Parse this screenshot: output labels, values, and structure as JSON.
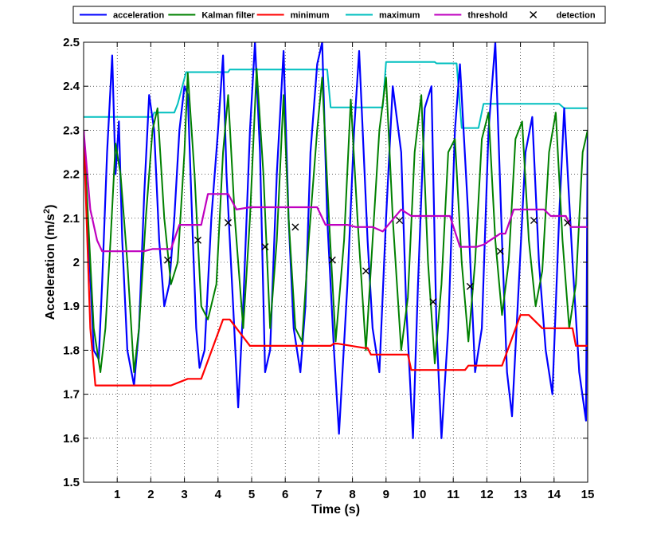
{
  "chart_data": {
    "type": "line",
    "xlabel": "Time (s)",
    "ylabel_main": "Acceleration (m/s",
    "ylabel_sup": "2",
    "ylabel_close": ")",
    "xlim": [
      0,
      15
    ],
    "ylim": [
      1.5,
      2.5
    ],
    "x_ticks": [
      1,
      2,
      3,
      4,
      5,
      6,
      7,
      8,
      9,
      10,
      11,
      12,
      13,
      14,
      15
    ],
    "y_ticks": [
      1.5,
      1.6,
      1.7,
      1.8,
      1.9,
      2.0,
      2.1,
      2.2,
      2.3,
      2.4,
      2.5
    ],
    "x_tick_labels": [
      "1",
      "2",
      "3",
      "4",
      "5",
      "6",
      "7",
      "8",
      "9",
      "10",
      "11",
      "12",
      "13",
      "14",
      "15"
    ],
    "y_tick_labels": [
      "1.5",
      "1.6",
      "1.7",
      "1.8",
      "1.9",
      "2",
      "2.1",
      "2.2",
      "2.3",
      "2.4",
      "2.5"
    ],
    "grid": true,
    "legend_position": "top",
    "series": [
      {
        "name": "acceleration",
        "color": "#0000ff",
        "width": 2.2,
        "x": [
          0,
          0.15,
          0.3,
          0.45,
          0.55,
          0.7,
          0.85,
          0.95,
          1.05,
          1.15,
          1.3,
          1.5,
          1.65,
          1.8,
          1.95,
          2.1,
          2.25,
          2.4,
          2.55,
          2.7,
          2.85,
          3.0,
          3.1,
          3.25,
          3.35,
          3.45,
          3.6,
          3.8,
          4.0,
          4.15,
          4.25,
          4.45,
          4.6,
          4.75,
          4.95,
          5.1,
          5.25,
          5.4,
          5.55,
          5.75,
          5.95,
          6.1,
          6.25,
          6.45,
          6.6,
          6.75,
          6.95,
          7.1,
          7.25,
          7.45,
          7.6,
          7.85,
          8.05,
          8.2,
          8.45,
          8.6,
          8.8,
          9.0,
          9.2,
          9.45,
          9.6,
          9.8,
          9.95,
          10.15,
          10.35,
          10.5,
          10.65,
          10.85,
          11.05,
          11.2,
          11.45,
          11.65,
          11.85,
          12.05,
          12.25,
          12.45,
          12.6,
          12.75,
          12.95,
          13.15,
          13.35,
          13.55,
          13.75,
          13.95,
          14.15,
          14.3,
          14.55,
          14.75,
          14.95,
          15.0
        ],
        "y": [
          2.3,
          2.05,
          1.8,
          1.78,
          1.95,
          2.25,
          2.47,
          2.2,
          2.32,
          2.05,
          1.8,
          1.72,
          1.85,
          2.15,
          2.38,
          2.3,
          2.05,
          1.9,
          1.95,
          2.1,
          2.3,
          2.4,
          2.38,
          2.05,
          1.85,
          1.76,
          1.8,
          2.1,
          2.3,
          2.47,
          2.2,
          1.9,
          1.67,
          1.9,
          2.3,
          2.5,
          2.25,
          1.75,
          1.8,
          2.2,
          2.48,
          2.1,
          1.85,
          1.75,
          1.9,
          2.25,
          2.45,
          2.5,
          2.1,
          1.8,
          1.61,
          1.95,
          2.3,
          2.48,
          2.05,
          1.85,
          1.75,
          2.1,
          2.4,
          2.25,
          1.9,
          1.6,
          1.95,
          2.35,
          2.4,
          1.85,
          1.6,
          1.85,
          2.3,
          2.45,
          2.1,
          1.75,
          1.85,
          2.3,
          2.5,
          2.05,
          1.75,
          1.65,
          1.95,
          2.25,
          2.33,
          2.0,
          1.8,
          1.7,
          2.1,
          2.35,
          2.0,
          1.75,
          1.64,
          2.3
        ]
      },
      {
        "name": "Kalman filter",
        "color": "#008000",
        "width": 2,
        "x": [
          0,
          0.3,
          0.5,
          0.65,
          0.8,
          0.95,
          1.1,
          1.3,
          1.5,
          1.65,
          1.85,
          2.05,
          2.2,
          2.4,
          2.6,
          2.8,
          3.0,
          3.1,
          3.3,
          3.5,
          3.7,
          3.95,
          4.15,
          4.3,
          4.5,
          4.75,
          4.95,
          5.15,
          5.35,
          5.55,
          5.75,
          5.95,
          6.1,
          6.3,
          6.5,
          6.7,
          6.95,
          7.1,
          7.3,
          7.5,
          7.75,
          7.95,
          8.15,
          8.4,
          8.6,
          8.8,
          9.0,
          9.2,
          9.45,
          9.65,
          9.85,
          10.05,
          10.25,
          10.45,
          10.65,
          10.85,
          11.05,
          11.25,
          11.45,
          11.65,
          11.85,
          12.05,
          12.25,
          12.45,
          12.65,
          12.85,
          13.05,
          13.25,
          13.45,
          13.65,
          13.85,
          14.05,
          14.25,
          14.45,
          14.65,
          14.85,
          15.0
        ],
        "y": [
          2.3,
          1.85,
          1.75,
          1.85,
          2.05,
          2.27,
          2.2,
          2.0,
          1.75,
          1.85,
          2.1,
          2.3,
          2.35,
          2.1,
          1.95,
          2.0,
          2.25,
          2.43,
          2.2,
          1.9,
          1.87,
          1.95,
          2.25,
          2.38,
          2.1,
          1.85,
          2.1,
          2.44,
          2.2,
          1.85,
          2.05,
          2.38,
          2.1,
          1.85,
          1.82,
          2.05,
          2.3,
          2.42,
          2.1,
          1.82,
          2.05,
          2.37,
          2.1,
          1.8,
          2.05,
          2.3,
          2.42,
          2.1,
          1.8,
          1.92,
          2.25,
          2.38,
          2.0,
          1.77,
          1.95,
          2.25,
          2.28,
          2.0,
          1.82,
          2.0,
          2.28,
          2.34,
          2.05,
          1.88,
          2.0,
          2.28,
          2.32,
          2.05,
          1.9,
          1.98,
          2.25,
          2.34,
          2.05,
          1.85,
          1.95,
          2.25,
          2.3
        ]
      },
      {
        "name": "minimum",
        "color": "#ff0000",
        "width": 2.2,
        "x": [
          0,
          0.2,
          0.35,
          0.5,
          2.55,
          2.6,
          3.1,
          3.4,
          3.5,
          4.15,
          4.25,
          4.35,
          4.95,
          7.35,
          7.45,
          7.55,
          8.35,
          8.45,
          8.55,
          9.65,
          9.75,
          10.45,
          11.35,
          11.45,
          12.25,
          12.35,
          12.45,
          13.0,
          13.15,
          13.25,
          13.65,
          13.75,
          14.55,
          14.65,
          14.75,
          15.0
        ],
        "y": [
          2.3,
          1.85,
          1.72,
          1.72,
          1.72,
          1.72,
          1.735,
          1.735,
          1.735,
          1.87,
          1.87,
          1.87,
          1.81,
          1.81,
          1.815,
          1.815,
          1.805,
          1.805,
          1.79,
          1.79,
          1.755,
          1.755,
          1.755,
          1.765,
          1.765,
          1.765,
          1.765,
          1.88,
          1.88,
          1.88,
          1.85,
          1.85,
          1.85,
          1.81,
          1.81,
          1.81
        ]
      },
      {
        "name": "maximum",
        "color": "#00bfbf",
        "width": 2,
        "x": [
          0,
          2.05,
          2.1,
          2.7,
          3.05,
          3.1,
          4.25,
          4.95,
          5.0,
          7.25,
          7.35,
          8.9,
          8.95,
          11.1,
          11.15,
          11.25,
          11.7,
          12.1,
          14.15,
          14.45,
          15.0
        ],
        "y": [
          2.33,
          2.33,
          2.34,
          2.34,
          2.432,
          2.432,
          2.432,
          2.438,
          2.438,
          2.438,
          2.352,
          2.352,
          2.455,
          2.452,
          2.452,
          2.305,
          2.305,
          2.36,
          2.36,
          2.348,
          2.348
        ],
        "steps": [
          [
            0,
            2.33
          ],
          [
            2.05,
            2.33
          ],
          [
            2.1,
            2.34
          ],
          [
            2.7,
            2.34
          ],
          [
            2.8,
            2.36
          ],
          [
            3.05,
            2.432
          ],
          [
            4.3,
            2.432
          ],
          [
            4.35,
            2.438
          ],
          [
            7.25,
            2.438
          ],
          [
            7.35,
            2.352
          ],
          [
            8.9,
            2.352
          ],
          [
            9.0,
            2.455
          ],
          [
            10.45,
            2.455
          ],
          [
            10.5,
            2.452
          ],
          [
            11.1,
            2.452
          ],
          [
            11.25,
            2.305
          ],
          [
            11.75,
            2.305
          ],
          [
            11.9,
            2.36
          ],
          [
            14.15,
            2.36
          ],
          [
            14.3,
            2.35
          ],
          [
            15.0,
            2.35
          ]
        ]
      },
      {
        "name": "threshold",
        "color": "#bf00bf",
        "width": 2.2,
        "x": [
          0,
          0.2,
          0.4,
          0.55,
          1.8,
          2.05,
          2.6,
          2.85,
          3.5,
          3.7,
          4.3,
          4.55,
          4.95,
          6.95,
          7.2,
          7.85,
          8.1,
          8.6,
          8.9,
          9.45,
          9.75,
          10.9,
          11.2,
          11.7,
          11.9,
          12.4,
          12.55,
          12.8,
          12.95,
          13.7,
          13.9,
          14.35,
          14.5,
          15.0
        ],
        "y": [
          2.3,
          2.12,
          2.05,
          2.025,
          2.025,
          2.03,
          2.03,
          2.085,
          2.085,
          2.155,
          2.155,
          2.12,
          2.125,
          2.125,
          2.085,
          2.085,
          2.08,
          2.08,
          2.07,
          2.12,
          2.105,
          2.105,
          2.035,
          2.035,
          2.04,
          2.065,
          2.065,
          2.12,
          2.12,
          2.12,
          2.105,
          2.105,
          2.08,
          2.08
        ]
      }
    ],
    "detections": {
      "name": "detection",
      "color": "#000000",
      "x": [
        2.5,
        3.4,
        4.3,
        5.4,
        6.3,
        7.4,
        8.4,
        9.4,
        10.4,
        11.5,
        12.4,
        13.4,
        14.4
      ],
      "y": [
        2.005,
        2.05,
        2.09,
        2.035,
        2.08,
        2.005,
        1.98,
        2.095,
        1.91,
        1.945,
        2.025,
        2.095,
        2.09
      ]
    },
    "legend": [
      "acceleration",
      "Kalman filter",
      "minimum",
      "maximum",
      "threshold",
      "detection"
    ]
  }
}
